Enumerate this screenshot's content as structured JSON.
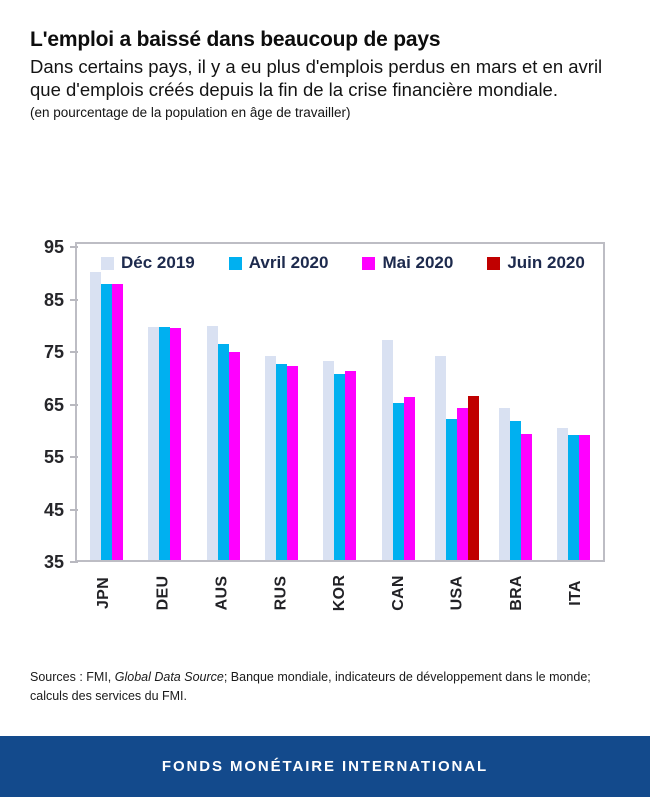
{
  "header": {
    "title": "L'emploi a baissé dans beaucoup de pays",
    "subtitle": "Dans certains pays, il y a eu plus d'emplois perdus en mars et en avril que d'emplois créés depuis la fin de la crise financière mondiale.",
    "unit_note": "(en pourcentage de la population en âge de travailler)"
  },
  "chart_data": {
    "type": "bar",
    "title": "L'emploi a baissé dans beaucoup de pays",
    "ylabel": "en pourcentage de la population en âge de travailler",
    "categories": [
      "JPN",
      "DEU",
      "AUS",
      "RUS",
      "KOR",
      "CAN",
      "USA",
      "BRA",
      "ITA"
    ],
    "series": [
      {
        "name": "Déc 2019",
        "color": "#d9e1f2",
        "values": [
          89.8,
          79.3,
          79.6,
          73.8,
          73.0,
          76.9,
          73.9,
          64.0,
          60.1
        ]
      },
      {
        "name": "Avril 2020",
        "color": "#00b0f0",
        "values": [
          87.6,
          79.3,
          76.1,
          72.3,
          70.4,
          64.9,
          61.8,
          61.5,
          58.8
        ]
      },
      {
        "name": "Mai 2020",
        "color": "#ff00ff",
        "values": [
          87.6,
          79.2,
          74.7,
          71.9,
          71.1,
          66.1,
          63.9,
          59.1,
          58.9
        ]
      },
      {
        "name": "Juin 2020",
        "color": "#c00000",
        "values": [
          null,
          null,
          null,
          null,
          null,
          null,
          66.2,
          null,
          null
        ]
      }
    ],
    "ylim": [
      35,
      95
    ],
    "yticks": [
      95,
      85,
      75,
      65,
      55,
      45,
      35
    ],
    "legend_position": "top",
    "grid": false
  },
  "sources": {
    "prefix": "Sources : FMI, ",
    "italic": "Global Data Source",
    "suffix": "; Banque mondiale, indicateurs de développement dans le monde; calculs des services du FMI."
  },
  "footer": {
    "text": "FONDS MONÉTAIRE INTERNATIONAL",
    "bg_color": "#134a8c"
  }
}
